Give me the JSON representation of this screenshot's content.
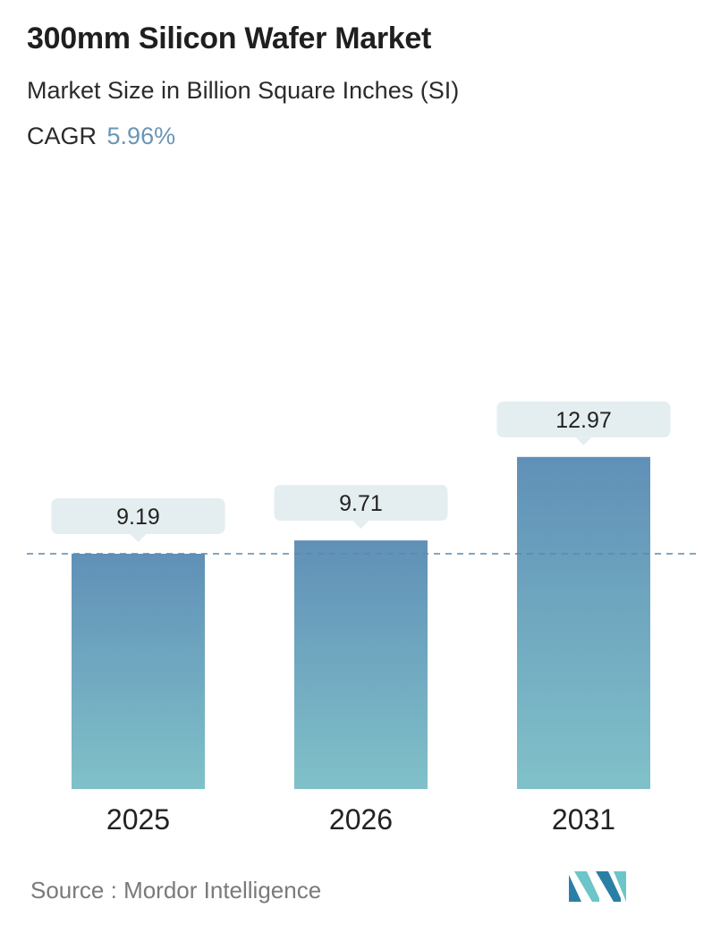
{
  "chart_data": {
    "type": "bar",
    "title": "300mm Silicon Wafer Market",
    "subtitle": "Market Size in Billion Square Inches (SI)",
    "cagr_label": "CAGR",
    "cagr_value": "5.96%",
    "categories": [
      "2025",
      "2026",
      "2031"
    ],
    "values": [
      9.19,
      9.71,
      12.97
    ],
    "value_labels": [
      "9.19",
      "9.71",
      "12.97"
    ],
    "reference_line": {
      "value": 9.19,
      "style": "dashed"
    },
    "ylim": [
      0,
      15
    ],
    "grid": false,
    "legend": "none",
    "colors": {
      "bar_top": "#6090b7",
      "bar_bottom": "#80c1c9",
      "label_box": "#e4eef0",
      "reference_line": "#5e88a8"
    }
  },
  "source": {
    "label": "Source :",
    "name": "Mordor Intelligence"
  },
  "logo": {
    "icon": "mordor-intelligence-logo-icon",
    "colors": [
      "#2a7fa6",
      "#6cc5c8"
    ]
  }
}
